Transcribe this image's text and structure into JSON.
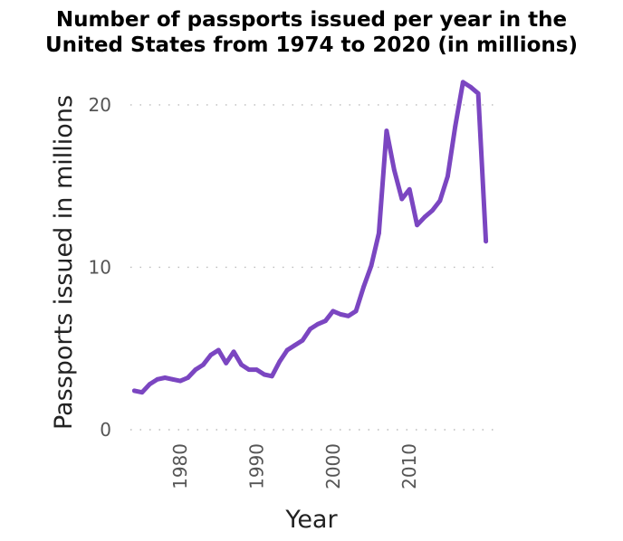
{
  "chart_data": {
    "type": "line",
    "title_lines": [
      "Number of passports issued per year in the",
      "United States from 1974 to 2020 (in millions)"
    ],
    "xlabel": "Year",
    "ylabel": "Passports issued in millions",
    "xlim": [
      1973,
      2021
    ],
    "ylim": [
      0,
      22
    ],
    "x_ticks": [
      1980,
      1990,
      2000,
      2010
    ],
    "y_ticks": [
      0,
      10,
      20
    ],
    "grid": "horizontal dotted",
    "series": [
      {
        "color": "#7b46c1",
        "x": [
          1974,
          1975,
          1976,
          1977,
          1978,
          1979,
          1980,
          1981,
          1982,
          1983,
          1984,
          1985,
          1986,
          1987,
          1988,
          1989,
          1990,
          1991,
          1992,
          1993,
          1994,
          1995,
          1996,
          1997,
          1998,
          1999,
          2000,
          2001,
          2002,
          2003,
          2004,
          2005,
          2006,
          2007,
          2008,
          2009,
          2010,
          2011,
          2012,
          2013,
          2014,
          2015,
          2016,
          2017,
          2018,
          2019,
          2020
        ],
        "y": [
          2.4,
          2.3,
          2.8,
          3.1,
          3.2,
          3.1,
          3.0,
          3.2,
          3.7,
          4.0,
          4.6,
          4.9,
          4.1,
          4.8,
          4.0,
          3.7,
          3.7,
          3.4,
          3.3,
          4.2,
          4.9,
          5.2,
          5.5,
          6.2,
          6.5,
          6.7,
          7.3,
          7.1,
          7.0,
          7.3,
          8.8,
          10.1,
          12.1,
          18.4,
          16.0,
          14.2,
          14.8,
          12.6,
          13.1,
          13.5,
          14.1,
          15.6,
          18.7,
          21.4,
          21.1,
          20.7,
          11.6
        ]
      }
    ]
  }
}
